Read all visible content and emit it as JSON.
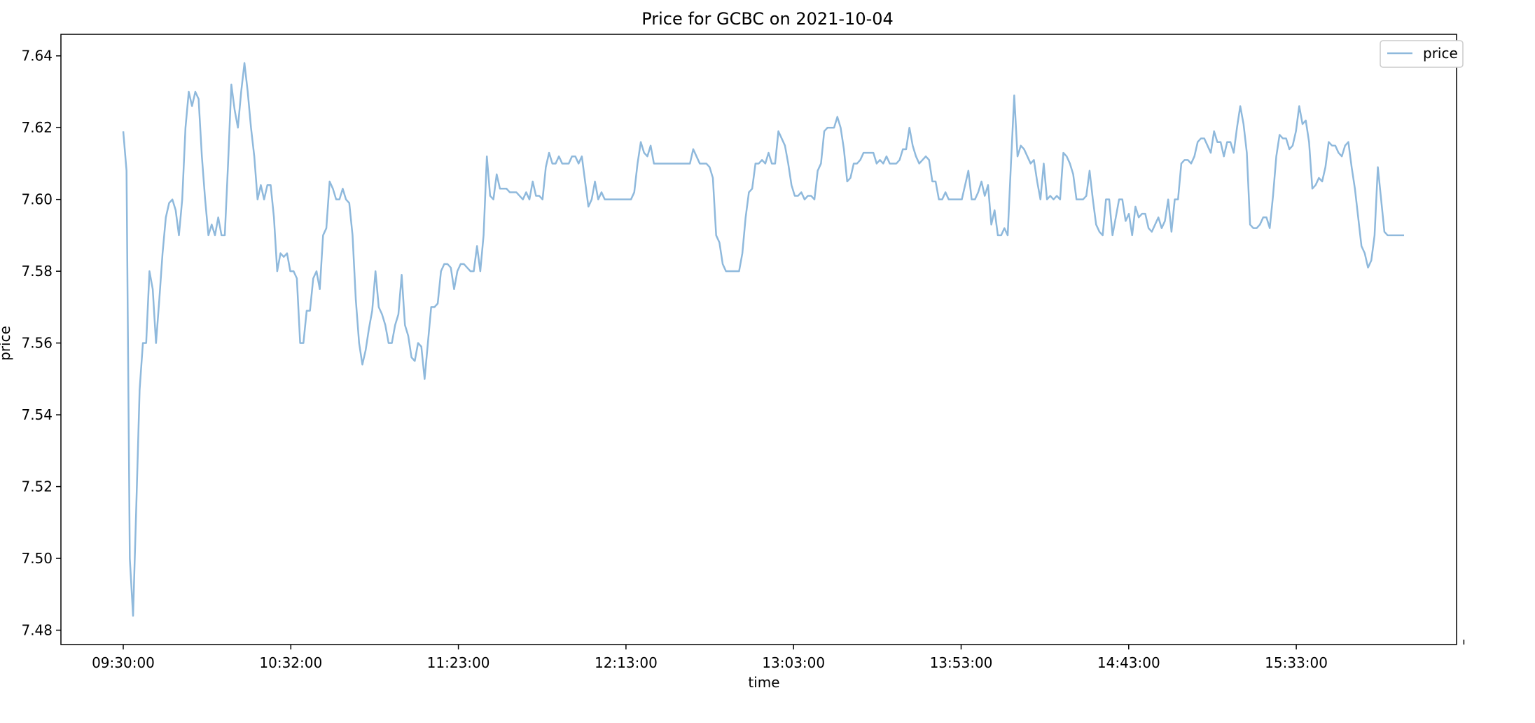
{
  "chart_data": {
    "type": "line",
    "title": "Price for GCBC on 2021-10-04",
    "xlabel": "time",
    "ylabel": "price",
    "x_start": "09:30:00",
    "x_tick_labels": [
      "09:30:00",
      "10:32:00",
      "11:23:00",
      "12:13:00",
      "13:03:00",
      "13:53:00",
      "14:43:00",
      "15:33:00"
    ],
    "ylim": [
      7.476,
      7.646
    ],
    "yticks": [
      7.48,
      7.5,
      7.52,
      7.54,
      7.56,
      7.58,
      7.6,
      7.62,
      7.64
    ],
    "grid": false,
    "legend": {
      "position": "top-right",
      "entries": [
        "price"
      ]
    },
    "series": [
      {
        "name": "price",
        "color": "#8fb9dc",
        "values": [
          7.619,
          7.608,
          7.5,
          7.484,
          7.515,
          7.547,
          7.56,
          7.56,
          7.58,
          7.575,
          7.56,
          7.572,
          7.585,
          7.595,
          7.599,
          7.6,
          7.597,
          7.59,
          7.6,
          7.62,
          7.63,
          7.626,
          7.63,
          7.628,
          7.612,
          7.6,
          7.59,
          7.593,
          7.59,
          7.595,
          7.59,
          7.59,
          7.61,
          7.632,
          7.625,
          7.62,
          7.63,
          7.638,
          7.63,
          7.62,
          7.612,
          7.6,
          7.604,
          7.6,
          7.604,
          7.604,
          7.595,
          7.58,
          7.585,
          7.584,
          7.585,
          7.58,
          7.58,
          7.578,
          7.56,
          7.56,
          7.569,
          7.569,
          7.578,
          7.58,
          7.575,
          7.59,
          7.592,
          7.605,
          7.603,
          7.6,
          7.6,
          7.603,
          7.6,
          7.599,
          7.59,
          7.572,
          7.56,
          7.554,
          7.558,
          7.564,
          7.569,
          7.58,
          7.57,
          7.568,
          7.565,
          7.56,
          7.56,
          7.565,
          7.568,
          7.579,
          7.565,
          7.562,
          7.556,
          7.555,
          7.56,
          7.559,
          7.55,
          7.56,
          7.57,
          7.57,
          7.571,
          7.58,
          7.582,
          7.582,
          7.581,
          7.575,
          7.58,
          7.582,
          7.582,
          7.581,
          7.58,
          7.58,
          7.587,
          7.58,
          7.59,
          7.612,
          7.601,
          7.6,
          7.607,
          7.603,
          7.603,
          7.603,
          7.602,
          7.602,
          7.602,
          7.601,
          7.6,
          7.602,
          7.6,
          7.605,
          7.601,
          7.601,
          7.6,
          7.609,
          7.613,
          7.61,
          7.61,
          7.612,
          7.61,
          7.61,
          7.61,
          7.612,
          7.612,
          7.61,
          7.612,
          7.605,
          7.598,
          7.6,
          7.605,
          7.6,
          7.602,
          7.6,
          7.6,
          7.6,
          7.6,
          7.6,
          7.6,
          7.6,
          7.6,
          7.6,
          7.602,
          7.61,
          7.616,
          7.613,
          7.612,
          7.615,
          7.61,
          7.61,
          7.61,
          7.61,
          7.61,
          7.61,
          7.61,
          7.61,
          7.61,
          7.61,
          7.61,
          7.61,
          7.614,
          7.612,
          7.61,
          7.61,
          7.61,
          7.609,
          7.606,
          7.59,
          7.588,
          7.582,
          7.58,
          7.58,
          7.58,
          7.58,
          7.58,
          7.585,
          7.595,
          7.602,
          7.603,
          7.61,
          7.61,
          7.611,
          7.61,
          7.613,
          7.61,
          7.61,
          7.619,
          7.617,
          7.615,
          7.61,
          7.604,
          7.601,
          7.601,
          7.602,
          7.6,
          7.601,
          7.601,
          7.6,
          7.608,
          7.61,
          7.619,
          7.62,
          7.62,
          7.62,
          7.623,
          7.62,
          7.614,
          7.605,
          7.606,
          7.61,
          7.61,
          7.611,
          7.613,
          7.613,
          7.613,
          7.613,
          7.61,
          7.611,
          7.61,
          7.612,
          7.61,
          7.61,
          7.61,
          7.611,
          7.614,
          7.614,
          7.62,
          7.615,
          7.612,
          7.61,
          7.611,
          7.612,
          7.611,
          7.605,
          7.605,
          7.6,
          7.6,
          7.602,
          7.6,
          7.6,
          7.6,
          7.6,
          7.6,
          7.604,
          7.608,
          7.6,
          7.6,
          7.602,
          7.605,
          7.601,
          7.604,
          7.593,
          7.597,
          7.59,
          7.59,
          7.592,
          7.59,
          7.61,
          7.629,
          7.612,
          7.615,
          7.614,
          7.612,
          7.61,
          7.611,
          7.605,
          7.6,
          7.61,
          7.6,
          7.601,
          7.6,
          7.601,
          7.6,
          7.613,
          7.612,
          7.61,
          7.607,
          7.6,
          7.6,
          7.6,
          7.601,
          7.608,
          7.6,
          7.593,
          7.591,
          7.59,
          7.6,
          7.6,
          7.59,
          7.595,
          7.6,
          7.6,
          7.594,
          7.596,
          7.59,
          7.598,
          7.595,
          7.596,
          7.596,
          7.592,
          7.591,
          7.593,
          7.595,
          7.592,
          7.594,
          7.6,
          7.591,
          7.6,
          7.6,
          7.61,
          7.611,
          7.611,
          7.61,
          7.612,
          7.616,
          7.617,
          7.617,
          7.615,
          7.613,
          7.619,
          7.616,
          7.616,
          7.612,
          7.616,
          7.616,
          7.613,
          7.62,
          7.626,
          7.621,
          7.613,
          7.593,
          7.592,
          7.592,
          7.593,
          7.595,
          7.595,
          7.592,
          7.601,
          7.612,
          7.618,
          7.617,
          7.617,
          7.614,
          7.615,
          7.619,
          7.626,
          7.621,
          7.622,
          7.616,
          7.603,
          7.604,
          7.606,
          7.605,
          7.609,
          7.616,
          7.615,
          7.615,
          7.613,
          7.612,
          7.615,
          7.616,
          7.609,
          7.603,
          7.595,
          7.587,
          7.585,
          7.581,
          7.583,
          7.59,
          7.609,
          7.6,
          7.591,
          7.59,
          7.59,
          7.59,
          7.59,
          7.59,
          7.59
        ]
      }
    ]
  }
}
